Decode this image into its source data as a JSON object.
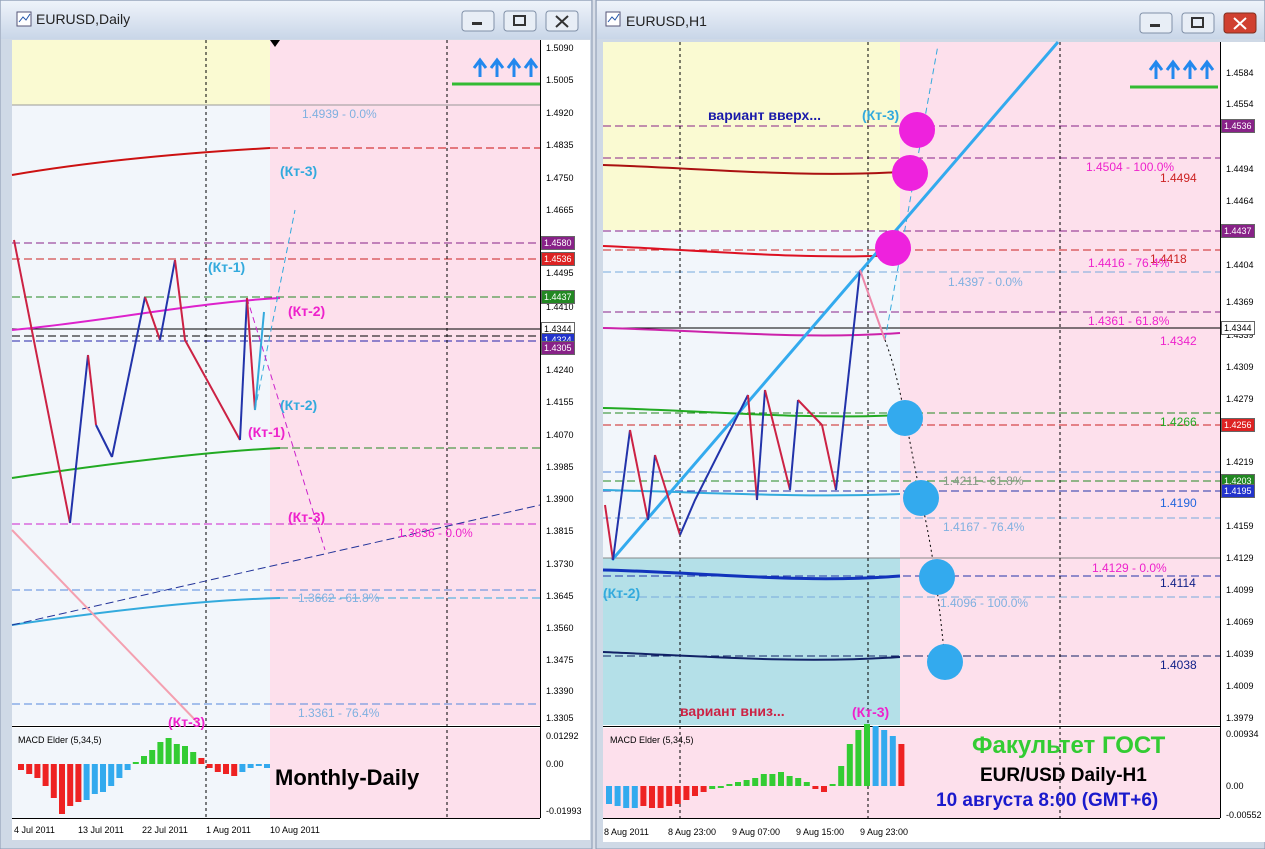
{
  "windows": [
    {
      "title": "EURUSD,Daily",
      "price_ticks": [
        "1.5090",
        "1.5005",
        "1.4920",
        "1.4835",
        "1.4750",
        "1.4665",
        "1.4495",
        "1.4410",
        "1.4240",
        "1.4155",
        "1.4070",
        "1.3985",
        "1.3900",
        "1.3815",
        "1.3730",
        "1.3645",
        "1.3560",
        "1.3475",
        "1.3390",
        "1.3305"
      ],
      "price_boxes": [
        "1.4580",
        "1.4536",
        "1.4437",
        "1.4344",
        "1.4324",
        "1.4305"
      ],
      "annotations": [
        "1.4939 - 0.0%",
        "(Кт-3)",
        "(Кт-1)",
        "(Кт-2)",
        "(Кт-2)",
        "(Кт-1)",
        "(Кт-3)",
        "1.3836 - 0.0%",
        "1.3662 - 61.8%",
        "1.3361 - 76.4%",
        "(Кт-3)"
      ],
      "indicator": {
        "name": "MACD Elder (5,34,5)",
        "ticks": [
          "0.01292",
          "0.00",
          "-0.01993"
        ]
      },
      "dates": [
        "4 Jul 2011",
        "13 Jul 2011",
        "22 Jul 2011",
        "1 Aug 2011",
        "10 Aug 2011"
      ],
      "captions": [
        "Monthly-Daily"
      ]
    },
    {
      "title": "EURUSD,H1",
      "price_ticks": [
        "1.4584",
        "1.4554",
        "1.4494",
        "1.4464",
        "1.4404",
        "1.4369",
        "1.4339",
        "1.4309",
        "1.4279",
        "1.4219",
        "1.4159",
        "1.4129",
        "1.4099",
        "1.4069",
        "1.4039",
        "1.4009",
        "1.3979"
      ],
      "price_boxes": [
        "1.4536",
        "1.4437",
        "1.4344",
        "1.4256",
        "1.4203",
        "1.4195"
      ],
      "annotations": [
        "вариант вверх...",
        "(Кт-3)",
        "1.4504 - 100.0%",
        "1.4494",
        "1.4418",
        "1.4416 - 76.4%",
        "1.4397 - 0.0%",
        "1.4361 - 61.8%",
        "1.4342",
        "1.4266",
        "1.4211 - 61.8%",
        "1.4190",
        "1.4167 - 76.4%",
        "1.4129 - 0.0%",
        "1.4114",
        "(Кт-2)",
        "1.4096 - 100.0%",
        "1.4038",
        "вариант вниз...",
        "(Кт-3)"
      ],
      "indicator": {
        "name": "MACD Elder (5,34,5)",
        "ticks": [
          "0.00934",
          "0.00",
          "-0.00552"
        ]
      },
      "dates": [
        "8 Aug 2011",
        "8 Aug 23:00",
        "9 Aug 07:00",
        "9 Aug 15:00",
        "9 Aug 23:00"
      ],
      "captions": [
        "Факультет ГОСТ",
        "EUR/USD Daily-H1",
        "10 августа 8:00 (GMT+6)"
      ]
    }
  ]
}
